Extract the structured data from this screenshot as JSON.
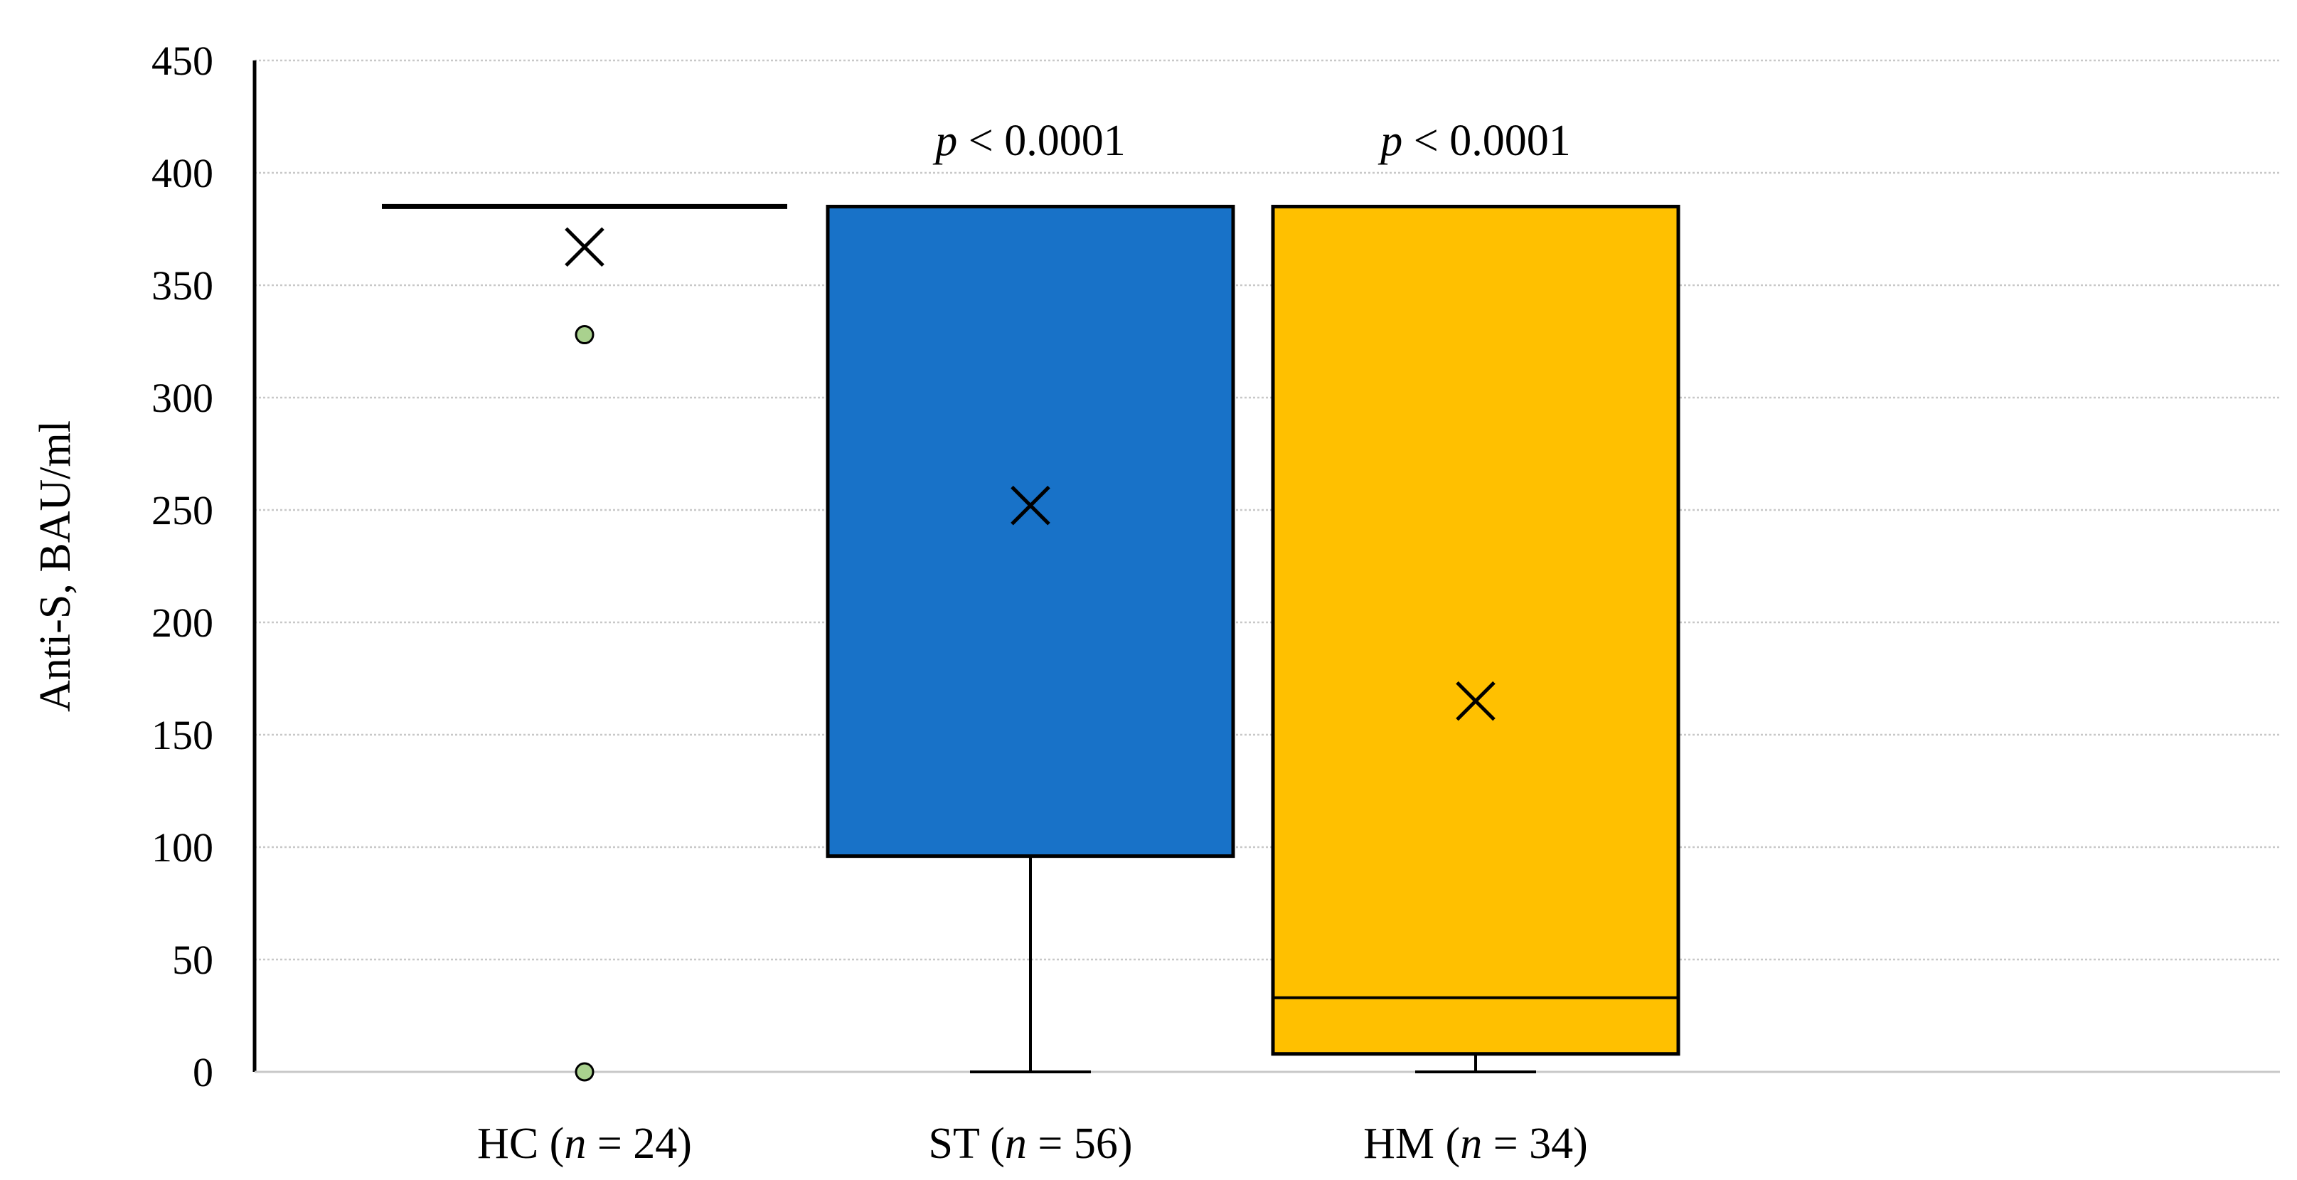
{
  "chart_data": {
    "type": "box",
    "ylabel": "Anti-S, BAU/ml",
    "ylim": [
      0,
      450
    ],
    "y_ticks": [
      "0",
      "50",
      "100",
      "150",
      "200",
      "250",
      "300",
      "350",
      "400",
      "450"
    ],
    "grid": true,
    "series": [
      {
        "label_prefix": "HC (",
        "label_italic": "n",
        "label_suffix": " = 24)",
        "color": "#ffffff",
        "q1": 385,
        "median": 385,
        "q3": 385,
        "whisker_low": 385,
        "whisker_high": 385,
        "mean": 367,
        "outliers": [
          328,
          0
        ],
        "annotation": null
      },
      {
        "label_prefix": "ST (",
        "label_italic": "n",
        "label_suffix": " = 56)",
        "color": "#1872C8",
        "q1": 96,
        "median": 385,
        "q3": 385,
        "whisker_low": 0,
        "whisker_high": 385,
        "mean": 252,
        "outliers": [],
        "annotation": {
          "italic": "p",
          "text": " < 0.0001"
        }
      },
      {
        "label_prefix": "HM (",
        "label_italic": "n",
        "label_suffix": " = 34)",
        "color": "#FFC000",
        "q1": 8,
        "median": 33,
        "q3": 385,
        "whisker_low": 0,
        "whisker_high": 385,
        "mean": 165,
        "outliers": [],
        "annotation": {
          "italic": "p",
          "text": " < 0.0001"
        }
      }
    ],
    "outlier_color": "#A9D18E"
  }
}
